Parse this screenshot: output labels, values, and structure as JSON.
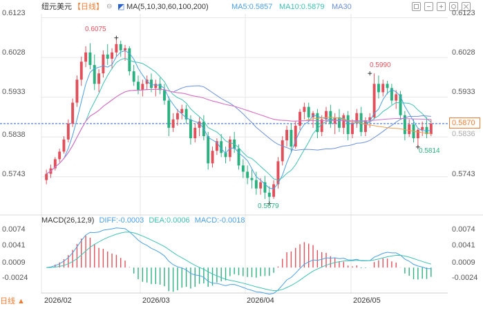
{
  "header": {
    "symbol": "纽元美元",
    "period": "【日线】",
    "ma_params": "MA(5,10,30,60,100,200)",
    "ma5": "MA5:0.5857",
    "ma10": "MA10:0.5879",
    "ma30": "MA30"
  },
  "price_axis": {
    "left": [
      "0.6123",
      "0.6028",
      "0.5933",
      "0.5838",
      "0.5743"
    ],
    "right": [
      "0.6123",
      "0.6028",
      "0.5933",
      "0.5838",
      "0.5743"
    ],
    "right_overlap_hint": "0.5836"
  },
  "current_price": "0.5870",
  "annotations": {
    "high_left": "0.6075",
    "high_mid": "0.5990",
    "low_mid": "0.5679",
    "low_right": "0.5814"
  },
  "macd": {
    "title": "MACD(26,12,9)",
    "diff": "DIFF:-0.0003",
    "dea": "DEA:0.0006",
    "macd": "MACD:-0.0018",
    "axis_left": [
      "0.0074",
      "0.0041",
      "0.0009",
      "-0.0024"
    ],
    "axis_right": [
      "0.0074",
      "0.0041",
      "0.0009",
      "-0.0024"
    ]
  },
  "dates": [
    "2026/02",
    "2026/03",
    "2026/04",
    "2026/05"
  ],
  "bottom_tab": "日线 ▲",
  "colors": {
    "up": "#e0505b",
    "down": "#2bb07f",
    "ma_text": "#4a9fe3",
    "accent": "#f07c33",
    "grid": "#e6e6e6"
  },
  "chart_data": {
    "type": "candlestick",
    "ohlc": [
      [
        0.5735,
        0.576,
        0.5725,
        0.575
      ],
      [
        0.575,
        0.5772,
        0.574,
        0.5763
      ],
      [
        0.5763,
        0.579,
        0.5758,
        0.5785
      ],
      [
        0.5785,
        0.581,
        0.5778,
        0.5803
      ],
      [
        0.5803,
        0.584,
        0.5798,
        0.5832
      ],
      [
        0.5832,
        0.588,
        0.5825,
        0.587
      ],
      [
        0.587,
        0.593,
        0.5862,
        0.592
      ],
      [
        0.592,
        0.5985,
        0.591,
        0.5975
      ],
      [
        0.5975,
        0.603,
        0.596,
        0.6018
      ],
      [
        0.6018,
        0.6055,
        0.6005,
        0.604
      ],
      [
        0.604,
        0.6062,
        0.6,
        0.601
      ],
      [
        0.601,
        0.6035,
        0.595,
        0.5965
      ],
      [
        0.5965,
        0.6,
        0.5945,
        0.599
      ],
      [
        0.599,
        0.6045,
        0.598,
        0.6035
      ],
      [
        0.6035,
        0.606,
        0.601,
        0.6025
      ],
      [
        0.6025,
        0.605,
        0.6,
        0.604
      ],
      [
        0.604,
        0.6075,
        0.603,
        0.606
      ],
      [
        0.606,
        0.6068,
        0.603,
        0.6045
      ],
      [
        0.6045,
        0.6058,
        0.602,
        0.605
      ],
      [
        0.605,
        0.6055,
        0.5985,
        0.5995
      ],
      [
        0.5995,
        0.601,
        0.596,
        0.597
      ],
      [
        0.597,
        0.5985,
        0.594,
        0.595
      ],
      [
        0.595,
        0.5975,
        0.5935,
        0.5965
      ],
      [
        0.5965,
        0.5985,
        0.595,
        0.5975
      ],
      [
        0.5975,
        0.599,
        0.5945,
        0.5955
      ],
      [
        0.5955,
        0.5975,
        0.5935,
        0.5965
      ],
      [
        0.5965,
        0.598,
        0.594,
        0.595
      ],
      [
        0.595,
        0.5965,
        0.5915,
        0.5925
      ],
      [
        0.5925,
        0.5935,
        0.584,
        0.586
      ],
      [
        0.586,
        0.5895,
        0.585,
        0.588
      ],
      [
        0.588,
        0.5905,
        0.5865,
        0.5895
      ],
      [
        0.5895,
        0.5915,
        0.588,
        0.5905
      ],
      [
        0.5905,
        0.5915,
        0.587,
        0.588
      ],
      [
        0.588,
        0.589,
        0.582,
        0.5835
      ],
      [
        0.5835,
        0.587,
        0.5825,
        0.586
      ],
      [
        0.586,
        0.5885,
        0.584,
        0.5875
      ],
      [
        0.5875,
        0.589,
        0.583,
        0.584
      ],
      [
        0.584,
        0.585,
        0.576,
        0.5775
      ],
      [
        0.5775,
        0.5815,
        0.5765,
        0.5805
      ],
      [
        0.5805,
        0.5835,
        0.5795,
        0.5828
      ],
      [
        0.5828,
        0.5845,
        0.579,
        0.58
      ],
      [
        0.58,
        0.5815,
        0.5775,
        0.579
      ],
      [
        0.579,
        0.584,
        0.578,
        0.5832
      ],
      [
        0.5832,
        0.585,
        0.58,
        0.581
      ],
      [
        0.581,
        0.582,
        0.576,
        0.577
      ],
      [
        0.577,
        0.5785,
        0.574,
        0.5755
      ],
      [
        0.5755,
        0.577,
        0.5725,
        0.574
      ],
      [
        0.574,
        0.576,
        0.5715,
        0.5735
      ],
      [
        0.5735,
        0.5755,
        0.57,
        0.5715
      ],
      [
        0.5715,
        0.574,
        0.57,
        0.573
      ],
      [
        0.573,
        0.5745,
        0.569,
        0.5705
      ],
      [
        0.5705,
        0.572,
        0.5679,
        0.5695
      ],
      [
        0.5695,
        0.5735,
        0.569,
        0.5725
      ],
      [
        0.5725,
        0.579,
        0.5715,
        0.578
      ],
      [
        0.578,
        0.584,
        0.577,
        0.583
      ],
      [
        0.583,
        0.5865,
        0.5815,
        0.5855
      ],
      [
        0.5855,
        0.587,
        0.58,
        0.5815
      ],
      [
        0.5815,
        0.5875,
        0.581,
        0.5865
      ],
      [
        0.5865,
        0.5905,
        0.5855,
        0.5898
      ],
      [
        0.5898,
        0.592,
        0.588,
        0.591
      ],
      [
        0.591,
        0.592,
        0.5875,
        0.5885
      ],
      [
        0.5885,
        0.59,
        0.586,
        0.5895
      ],
      [
        0.5895,
        0.5905,
        0.5835,
        0.585
      ],
      [
        0.585,
        0.589,
        0.584,
        0.588
      ],
      [
        0.588,
        0.591,
        0.587,
        0.59
      ],
      [
        0.59,
        0.5915,
        0.586,
        0.587
      ],
      [
        0.587,
        0.5895,
        0.5845,
        0.5885
      ],
      [
        0.5885,
        0.5905,
        0.585,
        0.586
      ],
      [
        0.586,
        0.5895,
        0.5845,
        0.589
      ],
      [
        0.589,
        0.59,
        0.583,
        0.5845
      ],
      [
        0.5845,
        0.588,
        0.5835,
        0.5872
      ],
      [
        0.5872,
        0.5905,
        0.586,
        0.5895
      ],
      [
        0.5895,
        0.591,
        0.584,
        0.585
      ],
      [
        0.585,
        0.5885,
        0.584,
        0.5878
      ],
      [
        0.5878,
        0.5895,
        0.586,
        0.5885
      ],
      [
        0.5885,
        0.599,
        0.588,
        0.5965
      ],
      [
        0.5965,
        0.5985,
        0.593,
        0.5945
      ],
      [
        0.5945,
        0.5975,
        0.5935,
        0.5965
      ],
      [
        0.5965,
        0.5972,
        0.594,
        0.5955
      ],
      [
        0.5955,
        0.5965,
        0.5915,
        0.5925
      ],
      [
        0.5925,
        0.595,
        0.5905,
        0.594
      ],
      [
        0.594,
        0.5948,
        0.588,
        0.589
      ],
      [
        0.589,
        0.59,
        0.583,
        0.5845
      ],
      [
        0.5845,
        0.588,
        0.5838,
        0.5868
      ],
      [
        0.5868,
        0.588,
        0.5825,
        0.5835
      ],
      [
        0.5835,
        0.586,
        0.5814,
        0.5855
      ],
      [
        0.5855,
        0.5875,
        0.584,
        0.5862
      ],
      [
        0.5862,
        0.5885,
        0.5835,
        0.5845
      ],
      [
        0.5845,
        0.588,
        0.584,
        0.587
      ]
    ]
  }
}
